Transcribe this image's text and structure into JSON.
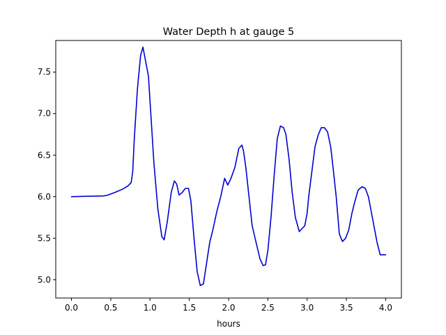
{
  "chart_data": {
    "type": "line",
    "title": "Water Depth h at gauge 5",
    "xlabel": "hours",
    "ylabel": "",
    "xlim": [
      -0.2,
      4.2
    ],
    "ylim": [
      4.78,
      7.88
    ],
    "xticks": [
      0.0,
      0.5,
      1.0,
      1.5,
      2.0,
      2.5,
      3.0,
      3.5,
      4.0
    ],
    "xtick_labels": [
      "0.0",
      "0.5",
      "1.0",
      "1.5",
      "2.0",
      "2.5",
      "3.0",
      "3.5",
      "4.0"
    ],
    "yticks": [
      5.0,
      5.5,
      6.0,
      6.5,
      7.0,
      7.5
    ],
    "ytick_labels": [
      "5.0",
      "5.5",
      "6.0",
      "6.5",
      "7.0",
      "7.5"
    ],
    "grid": false,
    "series": [
      {
        "color": "#0000cc",
        "x": [
          0.0,
          0.2,
          0.4,
          0.45,
          0.55,
          0.65,
          0.72,
          0.76,
          0.78,
          0.8,
          0.84,
          0.88,
          0.91,
          0.94,
          0.98,
          1.01,
          1.05,
          1.1,
          1.15,
          1.18,
          1.22,
          1.27,
          1.31,
          1.34,
          1.37,
          1.41,
          1.45,
          1.49,
          1.52,
          1.56,
          1.6,
          1.64,
          1.68,
          1.72,
          1.76,
          1.8,
          1.85,
          1.9,
          1.95,
          1.99,
          2.03,
          2.08,
          2.13,
          2.17,
          2.19,
          2.22,
          2.26,
          2.3,
          2.35,
          2.4,
          2.44,
          2.47,
          2.5,
          2.54,
          2.58,
          2.62,
          2.66,
          2.7,
          2.73,
          2.77,
          2.81,
          2.85,
          2.9,
          2.94,
          2.97,
          3.0,
          3.02,
          3.06,
          3.1,
          3.14,
          3.18,
          3.22,
          3.26,
          3.3,
          3.33,
          3.37,
          3.41,
          3.45,
          3.49,
          3.53,
          3.57,
          3.61,
          3.65,
          3.7,
          3.74,
          3.78,
          3.81,
          3.85,
          3.89,
          3.93,
          3.97,
          4.0
        ],
        "y": [
          6.0,
          6.005,
          6.008,
          6.015,
          6.05,
          6.09,
          6.13,
          6.17,
          6.3,
          6.7,
          7.3,
          7.7,
          7.8,
          7.65,
          7.45,
          7.0,
          6.4,
          5.85,
          5.52,
          5.48,
          5.7,
          6.05,
          6.19,
          6.15,
          6.02,
          6.05,
          6.1,
          6.1,
          5.95,
          5.5,
          5.1,
          4.93,
          4.95,
          5.2,
          5.45,
          5.6,
          5.82,
          6.0,
          6.22,
          6.14,
          6.22,
          6.35,
          6.58,
          6.62,
          6.55,
          6.35,
          6.0,
          5.65,
          5.45,
          5.25,
          5.17,
          5.18,
          5.35,
          5.75,
          6.25,
          6.7,
          6.85,
          6.83,
          6.75,
          6.45,
          6.05,
          5.75,
          5.58,
          5.62,
          5.65,
          5.8,
          6.0,
          6.3,
          6.6,
          6.74,
          6.83,
          6.83,
          6.78,
          6.6,
          6.35,
          6.0,
          5.55,
          5.46,
          5.5,
          5.6,
          5.8,
          5.95,
          6.08,
          6.12,
          6.1,
          6.0,
          5.85,
          5.65,
          5.45,
          5.3,
          5.3,
          5.3
        ]
      }
    ]
  }
}
